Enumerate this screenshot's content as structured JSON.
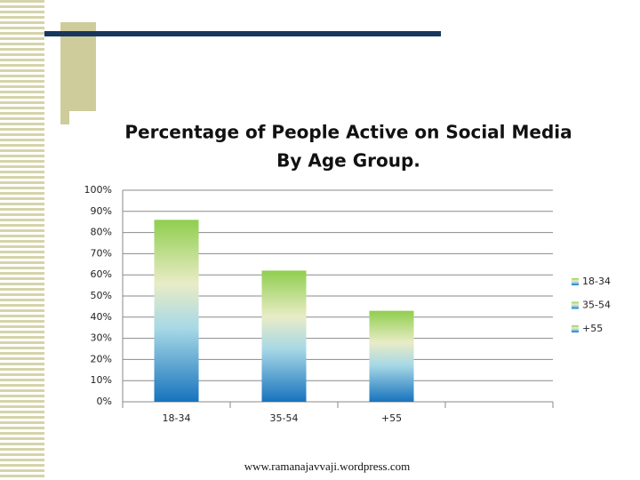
{
  "chart_data": {
    "type": "bar",
    "title": "Percentage of People Active on Social Media",
    "subtitle": "By Age Group.",
    "categories": [
      "18-34",
      "35-54",
      "+55",
      null
    ],
    "values": [
      86,
      62,
      43,
      null
    ],
    "ylim": [
      0,
      100
    ],
    "yticks": [
      {
        "value": 0,
        "label": "0%"
      },
      {
        "value": 10,
        "label": "10%"
      },
      {
        "value": 20,
        "label": "20%"
      },
      {
        "value": 30,
        "label": "30%"
      },
      {
        "value": 40,
        "label": "40%"
      },
      {
        "value": 50,
        "label": "50%"
      },
      {
        "value": 60,
        "label": "60%"
      },
      {
        "value": 70,
        "label": "70%"
      },
      {
        "value": 80,
        "label": "80%"
      },
      {
        "value": 90,
        "label": "90%"
      },
      {
        "value": 100,
        "label": "100%"
      }
    ],
    "grid": true,
    "legend": "right"
  },
  "footer": "www.ramanajavvaji.wordpress.com"
}
